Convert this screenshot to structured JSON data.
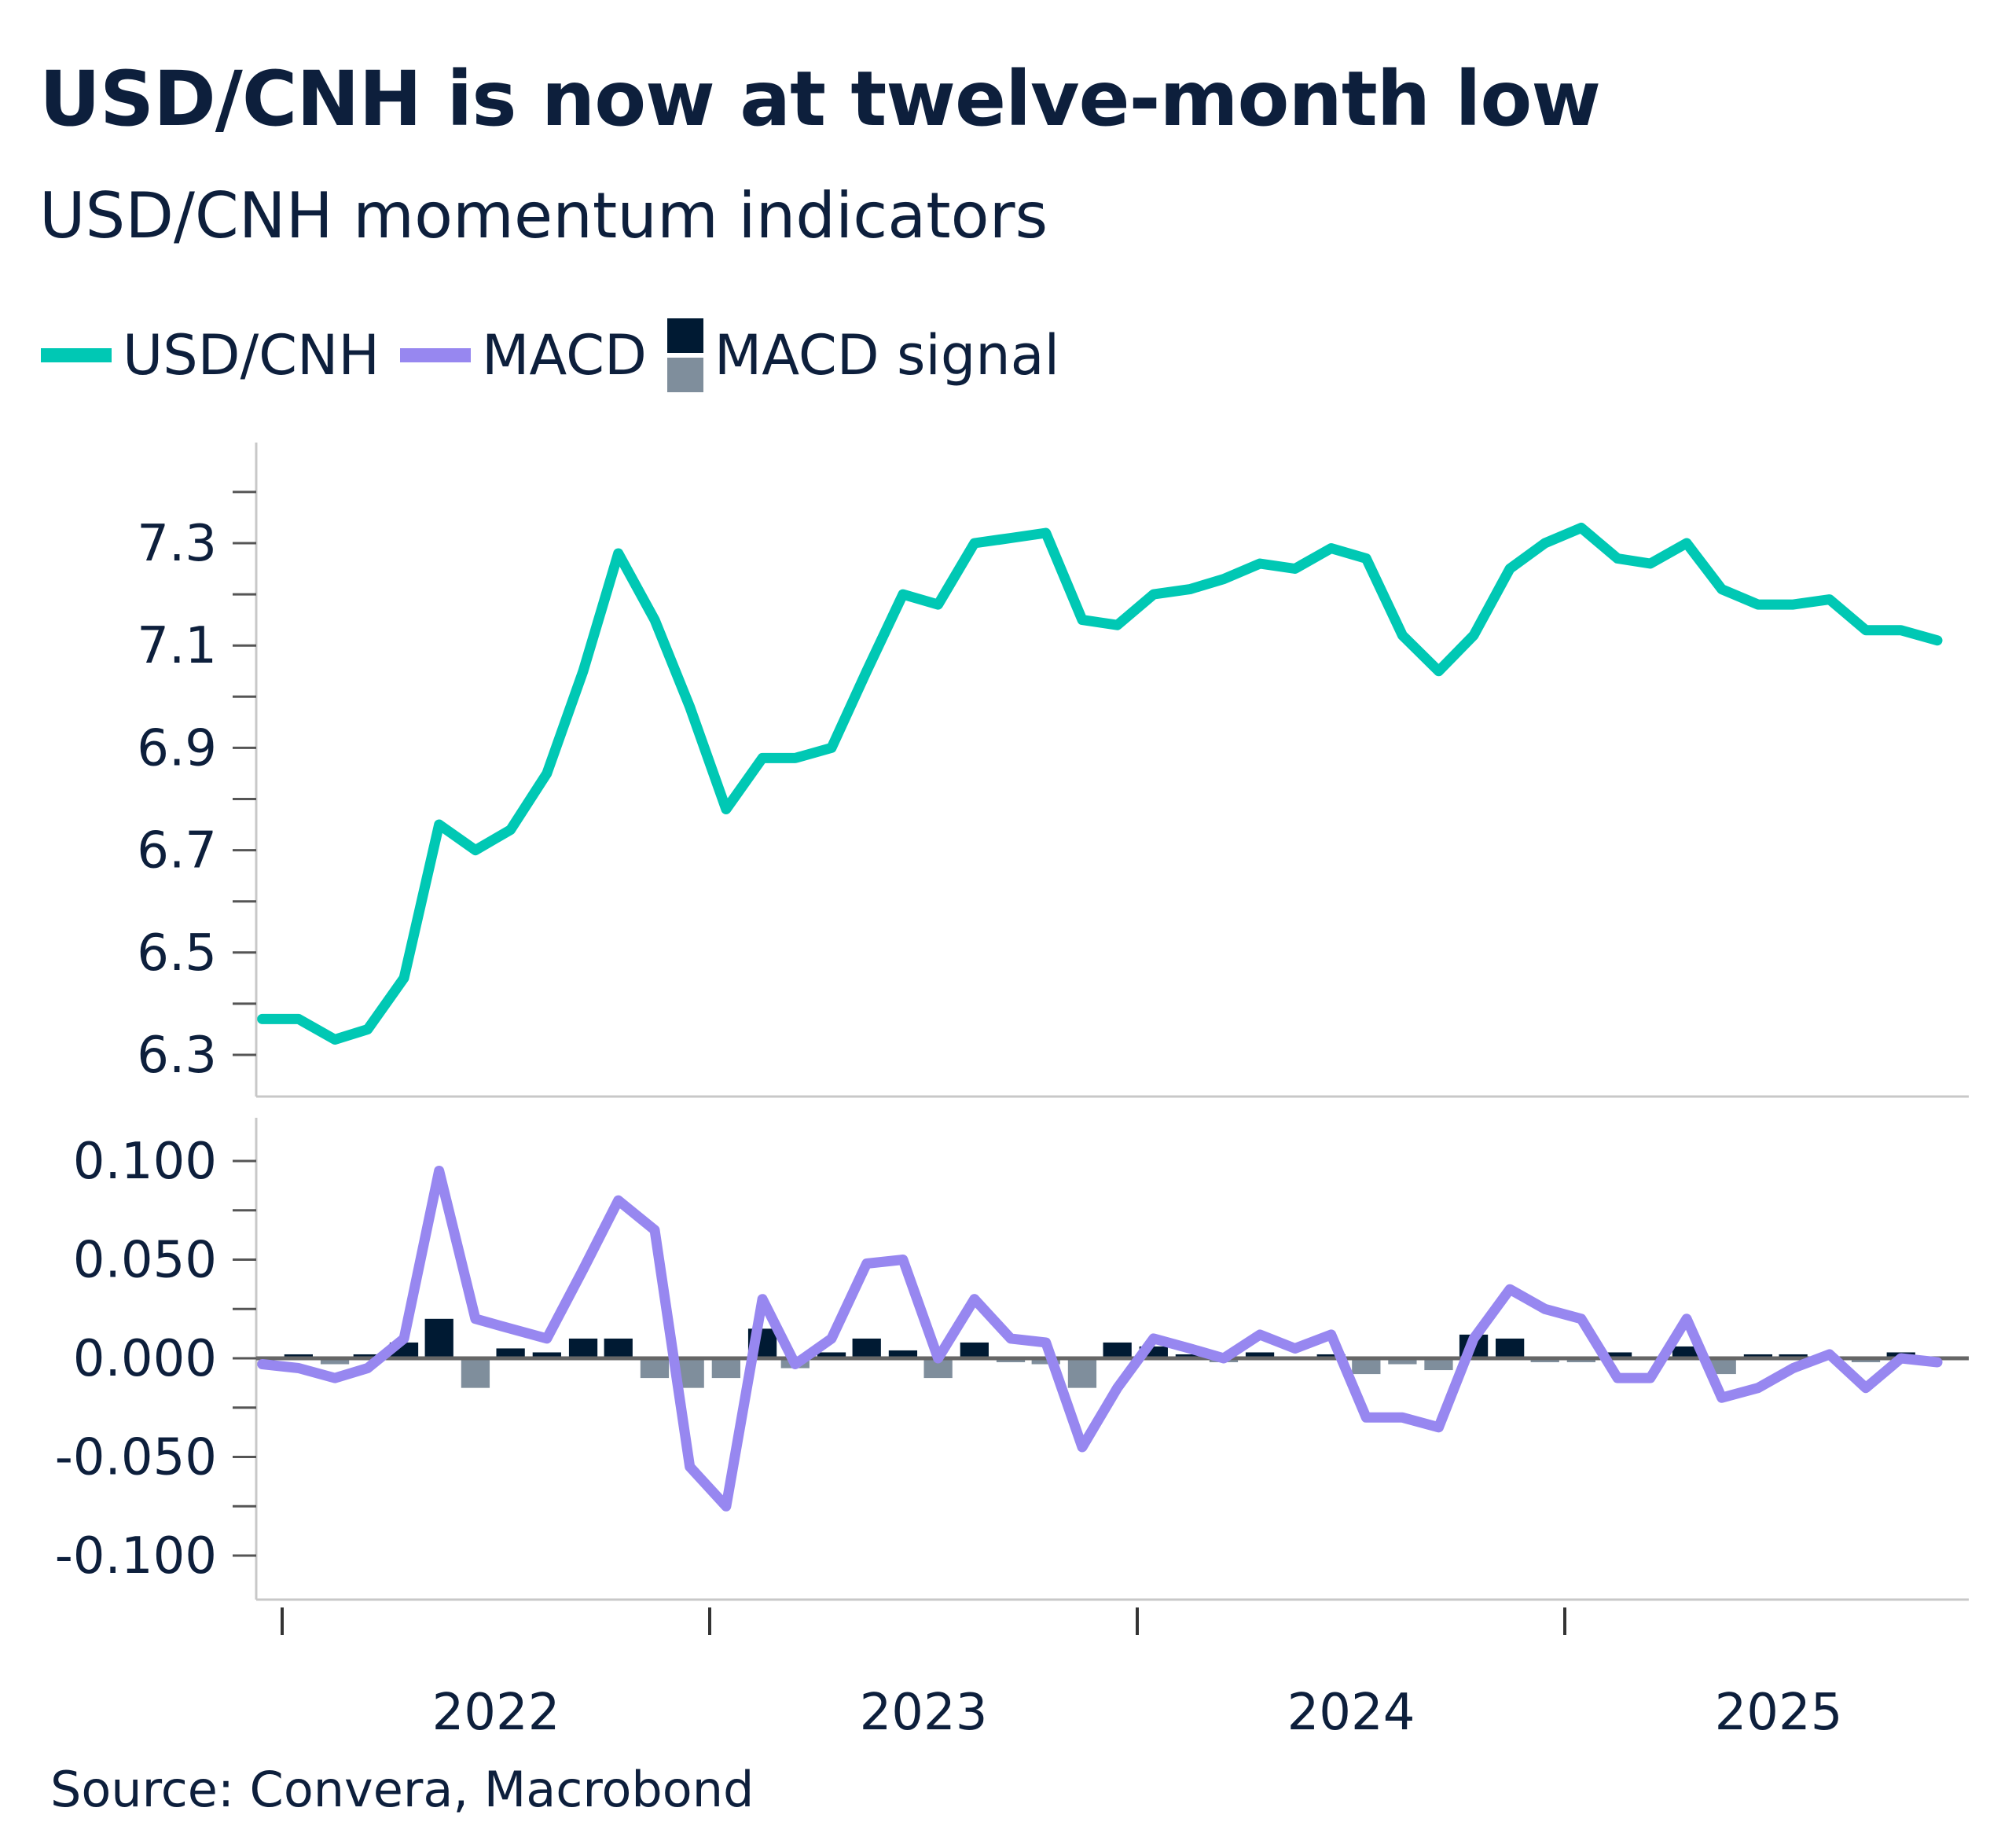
{
  "title": "USD/CNH is now at twelve-month low",
  "subtitle": "USD/CNH momentum indicators",
  "legend": [
    {
      "label": "USD/CNH",
      "color": "#00c8b4"
    },
    {
      "label": "MACD",
      "color": "#9787f0"
    },
    {
      "label": "MACD signal",
      "colors": [
        "#001a33",
        "#7f8e9c"
      ]
    }
  ],
  "source": "Source: Convera, Macrobond",
  "chart_data": [
    {
      "type": "line",
      "panel": "top",
      "series": [
        {
          "name": "USD/CNH",
          "color": "#00c8b4"
        }
      ],
      "yticks": [
        "6.3",
        "6.5",
        "6.7",
        "6.9",
        "7.1",
        "7.3"
      ],
      "ylim": [
        6.26,
        7.45
      ],
      "grid": false
    },
    {
      "type": "line+bar",
      "panel": "bottom",
      "series": [
        {
          "name": "MACD",
          "color": "#9787f0"
        },
        {
          "name": "MACD signal",
          "positive_color": "#001a33",
          "negative_color": "#7f8e9c"
        }
      ],
      "yticks": [
        "0.100",
        "0.050",
        "0.000",
        "-0.050",
        "-0.100"
      ],
      "ylim": [
        -0.12,
        0.12
      ],
      "grid": false
    }
  ],
  "x_axis": {
    "tick_labels": [
      "2022",
      "2023",
      "2024",
      "2025"
    ],
    "range": [
      "2021-12-10",
      "2025-12-31"
    ]
  },
  "dates": [
    "2021-12-15",
    "2022-01-15",
    "2022-02-15",
    "2022-03-15",
    "2022-04-15",
    "2022-05-15",
    "2022-06-15",
    "2022-07-15",
    "2022-08-15",
    "2022-09-15",
    "2022-10-15",
    "2022-11-15",
    "2022-12-15",
    "2023-01-15",
    "2023-02-15",
    "2023-03-15",
    "2023-04-15",
    "2023-05-15",
    "2023-06-15",
    "2023-07-15",
    "2023-08-15",
    "2023-09-15",
    "2023-10-15",
    "2023-11-15",
    "2023-12-15",
    "2024-01-15",
    "2024-02-15",
    "2024-03-15",
    "2024-04-15",
    "2024-05-15",
    "2024-06-15",
    "2024-07-15",
    "2024-08-15",
    "2024-09-15",
    "2024-10-15",
    "2024-11-15",
    "2024-12-15",
    "2025-01-15",
    "2025-02-15",
    "2025-03-15",
    "2025-04-15",
    "2025-05-15",
    "2025-06-15",
    "2025-07-15",
    "2025-08-15",
    "2025-09-15",
    "2025-10-15",
    "2025-11-15"
  ],
  "usdcnh": [
    6.37,
    6.37,
    6.33,
    6.35,
    6.45,
    6.75,
    6.7,
    6.74,
    6.85,
    7.05,
    7.28,
    7.15,
    6.98,
    6.78,
    6.88,
    6.88,
    6.9,
    7.05,
    7.2,
    7.18,
    7.3,
    7.31,
    7.32,
    7.15,
    7.14,
    7.2,
    7.21,
    7.23,
    7.26,
    7.25,
    7.29,
    7.27,
    7.12,
    7.05,
    7.12,
    7.25,
    7.3,
    7.33,
    7.27,
    7.26,
    7.3,
    7.21,
    7.18,
    7.18,
    7.19,
    7.13,
    7.13,
    7.11
  ],
  "macd": [
    -0.003,
    -0.005,
    -0.01,
    -0.005,
    0.01,
    0.095,
    0.02,
    0.015,
    0.01,
    0.045,
    0.08,
    0.065,
    -0.055,
    -0.075,
    0.03,
    -0.003,
    0.01,
    0.048,
    0.05,
    0.0,
    0.03,
    0.01,
    0.008,
    -0.045,
    -0.015,
    0.01,
    0.005,
    0.0,
    0.012,
    0.005,
    0.012,
    -0.03,
    -0.03,
    -0.035,
    0.01,
    0.035,
    0.025,
    0.02,
    -0.01,
    -0.01,
    0.02,
    -0.02,
    -0.015,
    -0.005,
    0.002,
    -0.015,
    0.0,
    -0.002
  ],
  "macd_signal": [
    0.0,
    0.002,
    -0.003,
    0.002,
    0.008,
    0.02,
    -0.015,
    0.005,
    0.003,
    0.01,
    0.01,
    -0.01,
    -0.015,
    -0.01,
    0.015,
    -0.005,
    0.003,
    0.01,
    0.004,
    -0.01,
    0.008,
    -0.002,
    -0.003,
    -0.015,
    0.008,
    0.006,
    0.002,
    -0.002,
    0.003,
    0.001,
    0.002,
    -0.008,
    -0.003,
    -0.006,
    0.012,
    0.01,
    -0.002,
    -0.002,
    0.003,
    -0.001,
    0.006,
    -0.008,
    0.002,
    0.002,
    0.001,
    -0.002,
    0.003,
    0.001
  ]
}
